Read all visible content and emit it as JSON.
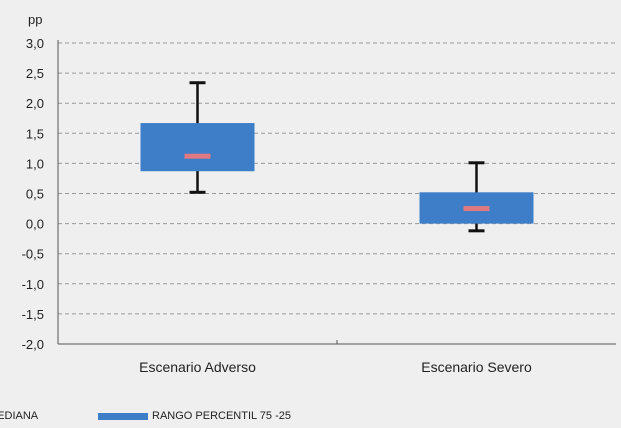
{
  "chart_data": {
    "type": "box",
    "y_unit": "pp",
    "ylim": [
      -2.0,
      3.0
    ],
    "y_ticks": [
      "3,0",
      "2,5",
      "2,0",
      "1,5",
      "1,0",
      "0,5",
      "0,0",
      "-0,5",
      "-1,0",
      "-1,5",
      "-2,0"
    ],
    "y_tick_values": [
      3.0,
      2.5,
      2.0,
      1.5,
      1.0,
      0.5,
      0.0,
      -0.5,
      -1.0,
      -1.5,
      -2.0
    ],
    "grid": true,
    "categories": [
      "Escenario Adverso",
      "Escenario Severo"
    ],
    "boxes": [
      {
        "category": "Escenario Adverso",
        "whisker_low": 0.52,
        "q1": 0.87,
        "median": 1.12,
        "q3": 1.67,
        "whisker_high": 2.34
      },
      {
        "category": "Escenario Severo",
        "whisker_low": -0.12,
        "q1": 0.0,
        "median": 0.25,
        "q3": 0.52,
        "whisker_high": 1.01
      }
    ],
    "legend": {
      "placement": "bottom-left",
      "items": [
        {
          "label": "MEDIANA",
          "color": "#e07a80"
        },
        {
          "label": "RANGO PERCENTIL 75 -25",
          "color": "#3e7ec9"
        }
      ]
    },
    "colors": {
      "box": "#3e7ec9",
      "median": "#e07a80",
      "whisker": "#111111",
      "grid": "#9a9a9a",
      "background": "#efefef"
    }
  }
}
